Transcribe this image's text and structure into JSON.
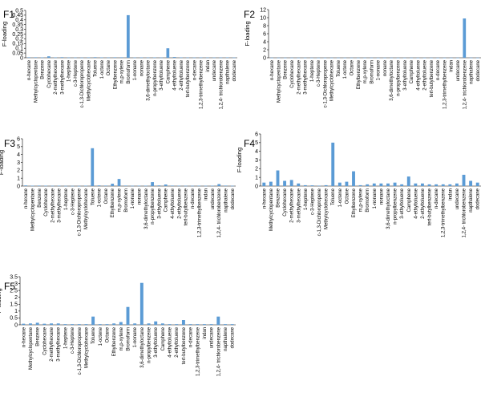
{
  "bar_color": "#5b9bd5",
  "chart_data": [
    {
      "type": "bar",
      "title": "F1",
      "ylabel": "F-loading",
      "xlabel": "",
      "ylim": [
        0,
        0.5
      ],
      "yticks": [
        "0",
        "0.05",
        "0.1",
        "0.15",
        "0.2",
        "0.25",
        "0.3",
        "0.35",
        "0.4",
        "0.45",
        "0.5"
      ],
      "categories": [
        "n-hexane",
        "Methylcyclopentane",
        "Benzene",
        "Cyclohexane",
        "2-methylhexane",
        "3-methylhexane",
        "1-heptene",
        "c-3-Heptene",
        "c-1,3-Dichloropropene",
        "Methylcyclohexane",
        "Toluene",
        "1-octene",
        "Octane",
        "Ethylbenzene",
        "m,p-xylene",
        "Bromoform",
        "1-nonane",
        "nonane",
        "3,6-dimethyloctane",
        "n-propylbenzene",
        "3-ethyltoluene",
        "Camphene",
        "4-ethyltoluene",
        "2-ethyltoluene",
        "tert-butylbenzene",
        "n-decane",
        "1,2,3-trimethylbenzene",
        "indan",
        "undecane",
        "1,2,4- trichlorobenzene",
        "napthalene",
        "dodecane"
      ],
      "values": [
        0.005,
        0.005,
        0.004,
        0.015,
        0.004,
        0.006,
        0.003,
        0.003,
        0.002,
        0.004,
        0.006,
        0.004,
        0.003,
        0.005,
        0.005,
        0.45,
        0.003,
        0.004,
        0.003,
        0.004,
        0.003,
        0.1,
        0.008,
        0.004,
        0.003,
        0.003,
        0.004,
        0.003,
        0.003,
        0.003,
        0.004,
        0.003
      ]
    },
    {
      "type": "bar",
      "title": "F2",
      "ylabel": "F-loading",
      "xlabel": "",
      "ylim": [
        0,
        12
      ],
      "yticks": [
        "0",
        "2",
        "4",
        "6",
        "8",
        "10",
        "12"
      ],
      "categories": [
        "n-hexane",
        "Methylcyclopentane",
        "Benzene",
        "Cyclohexane",
        "2-methylhexane",
        "3-methylhexane",
        "1-heptene",
        "c-3-Heptene",
        "c-1,3-Dichloropropene",
        "Methylcyclohexane",
        "Toluene",
        "1-octene",
        "Octane",
        "Ethylbenzene",
        "m,p-xylene",
        "Bromoform",
        "1-nonane",
        "nonane",
        "3,6-dimethyloctane",
        "n-propylbenzene",
        "3-ethyltoluene",
        "Camphene",
        "4-ethyltoluene",
        "2-ethyltoluene",
        "tert-butylbenzene",
        "n-decane",
        "1,2,3-trimethylbenzene",
        "indan",
        "undecane",
        "1,2,4- trichlorobenzene",
        "napthalene",
        "dodecane"
      ],
      "values": [
        0.03,
        0.04,
        0.03,
        0.03,
        0.03,
        0.03,
        0.02,
        0.02,
        0.02,
        0.03,
        0.04,
        0.03,
        0.03,
        0.03,
        0.03,
        0.04,
        0.02,
        0.03,
        0.03,
        0.02,
        0.02,
        0.03,
        0.02,
        0.02,
        0.02,
        0.02,
        0.02,
        0.02,
        0.03,
        9.8,
        0.04,
        0.03
      ]
    },
    {
      "type": "bar",
      "title": "F3",
      "ylabel": "F-loading",
      "xlabel": "",
      "ylim": [
        0,
        6
      ],
      "yticks": [
        "0",
        "1",
        "2",
        "3",
        "4",
        "5",
        "6"
      ],
      "categories": [
        "n-hexane",
        "Methylcyclopentane",
        "Benzene",
        "Cyclohexane",
        "2-methylhexane",
        "3-methylhexane",
        "1-heptene",
        "c-3-Heptene",
        "c-1,3-Dichloropropene",
        "Methylcyclohexane",
        "Toluene",
        "1-octene",
        "Octane",
        "Ethylbenzene",
        "m,p-xylene",
        "Bromoform",
        "1-nonane",
        "nonane",
        "3,6-dimethyloctane",
        "n-propylbenzene",
        "3-ethyltoluene",
        "Camphene",
        "4-ethyltoluene",
        "2-ethyltoluene",
        "tert-butylbenzene",
        "n-decane",
        "1,2,3-trimethylbenzene",
        "indan",
        "undecane",
        "1,2,4- trichlorobenzene",
        "napthalene",
        "dodecane"
      ],
      "values": [
        0.08,
        0.05,
        0.06,
        0.05,
        0.04,
        0.05,
        0.03,
        0.03,
        0.02,
        0.05,
        4.8,
        0.08,
        0.06,
        0.3,
        0.9,
        0.06,
        0.04,
        0.05,
        0.05,
        0.5,
        0.08,
        0.2,
        0.06,
        0.05,
        0.04,
        0.04,
        0.05,
        0.04,
        0.05,
        0.25,
        0.06,
        0.04
      ]
    },
    {
      "type": "bar",
      "title": "F4",
      "ylabel": "F-loading",
      "xlabel": "",
      "ylim": [
        0,
        6
      ],
      "yticks": [
        "0",
        "1",
        "2",
        "3",
        "4",
        "5",
        "6"
      ],
      "categories": [
        "n-hexane",
        "Methylcyclopentane",
        "Benzene",
        "Cyclohexane",
        "2-methylhexane",
        "3-methylhexane",
        "1-heptene",
        "c-3-Heptene",
        "c-1,3-Dichloropropene",
        "Methylcyclohexane",
        "Toluene",
        "1-octene",
        "Octane",
        "Ethylbenzene",
        "m,p-xylene",
        "Bromoform",
        "1-nonane",
        "nonane",
        "3,6-dimethyloctane",
        "n-propylbenzene",
        "3-ethyltoluene",
        "Camphene",
        "4-ethyltoluene",
        "2-ethyltoluene",
        "tert-butylbenzene",
        "n-decane",
        "1,2,3-trimethylbenzene",
        "indan",
        "undecane",
        "1,2,4- trichlorobenzene",
        "napthalene",
        "dodecane"
      ],
      "values": [
        0.4,
        0.5,
        1.8,
        0.6,
        0.7,
        0.3,
        0.1,
        0.08,
        0.05,
        0.1,
        5.0,
        0.4,
        0.5,
        1.7,
        0.1,
        0.2,
        0.3,
        0.3,
        0.3,
        0.4,
        0.2,
        1.1,
        0.3,
        0.3,
        0.2,
        0.2,
        0.2,
        0.2,
        0.3,
        1.3,
        0.6,
        0.4
      ]
    },
    {
      "type": "bar",
      "title": "F5",
      "ylabel": "F-loading",
      "xlabel": "",
      "ylim": [
        0,
        3.5
      ],
      "yticks": [
        "0",
        "0.5",
        "1",
        "1.5",
        "2",
        "2.5",
        "3",
        "3.5"
      ],
      "categories": [
        "n-hexane",
        "Methylcyclopentane",
        "Benzene",
        "Cyclohexane",
        "2-methylhexane",
        "3-methylhexane",
        "1-heptene",
        "c-3-Heptene",
        "c-1,3-Dichloropropene",
        "Methylcyclohexane",
        "Toluene",
        "1-octene",
        "Octane",
        "Ethylbenzene",
        "m,p-xylene",
        "Bromoform",
        "1-nonane",
        "3,6-dimethyloctane",
        "n-propylbenzene",
        "3-ethyltoluene",
        "Camphene",
        "4-ethyltoluene",
        "2-ethyltoluene",
        "tert-butylbenzene",
        "n-decane",
        "1,2,3-trimethylbenzene",
        "indan",
        "undecane",
        "1,2,4- trichlorobenzene",
        "napthalene",
        "dodecane"
      ],
      "values": [
        0.08,
        0.1,
        0.15,
        0.08,
        0.1,
        0.1,
        0.05,
        0.05,
        0.05,
        0.05,
        0.6,
        0.05,
        0.05,
        0.1,
        0.2,
        1.3,
        0.1,
        3.05,
        0.1,
        0.25,
        0.1,
        0.05,
        0.05,
        0.35,
        0.05,
        0.05,
        0.05,
        0.05,
        0.6,
        0.05,
        0.05
      ]
    }
  ]
}
